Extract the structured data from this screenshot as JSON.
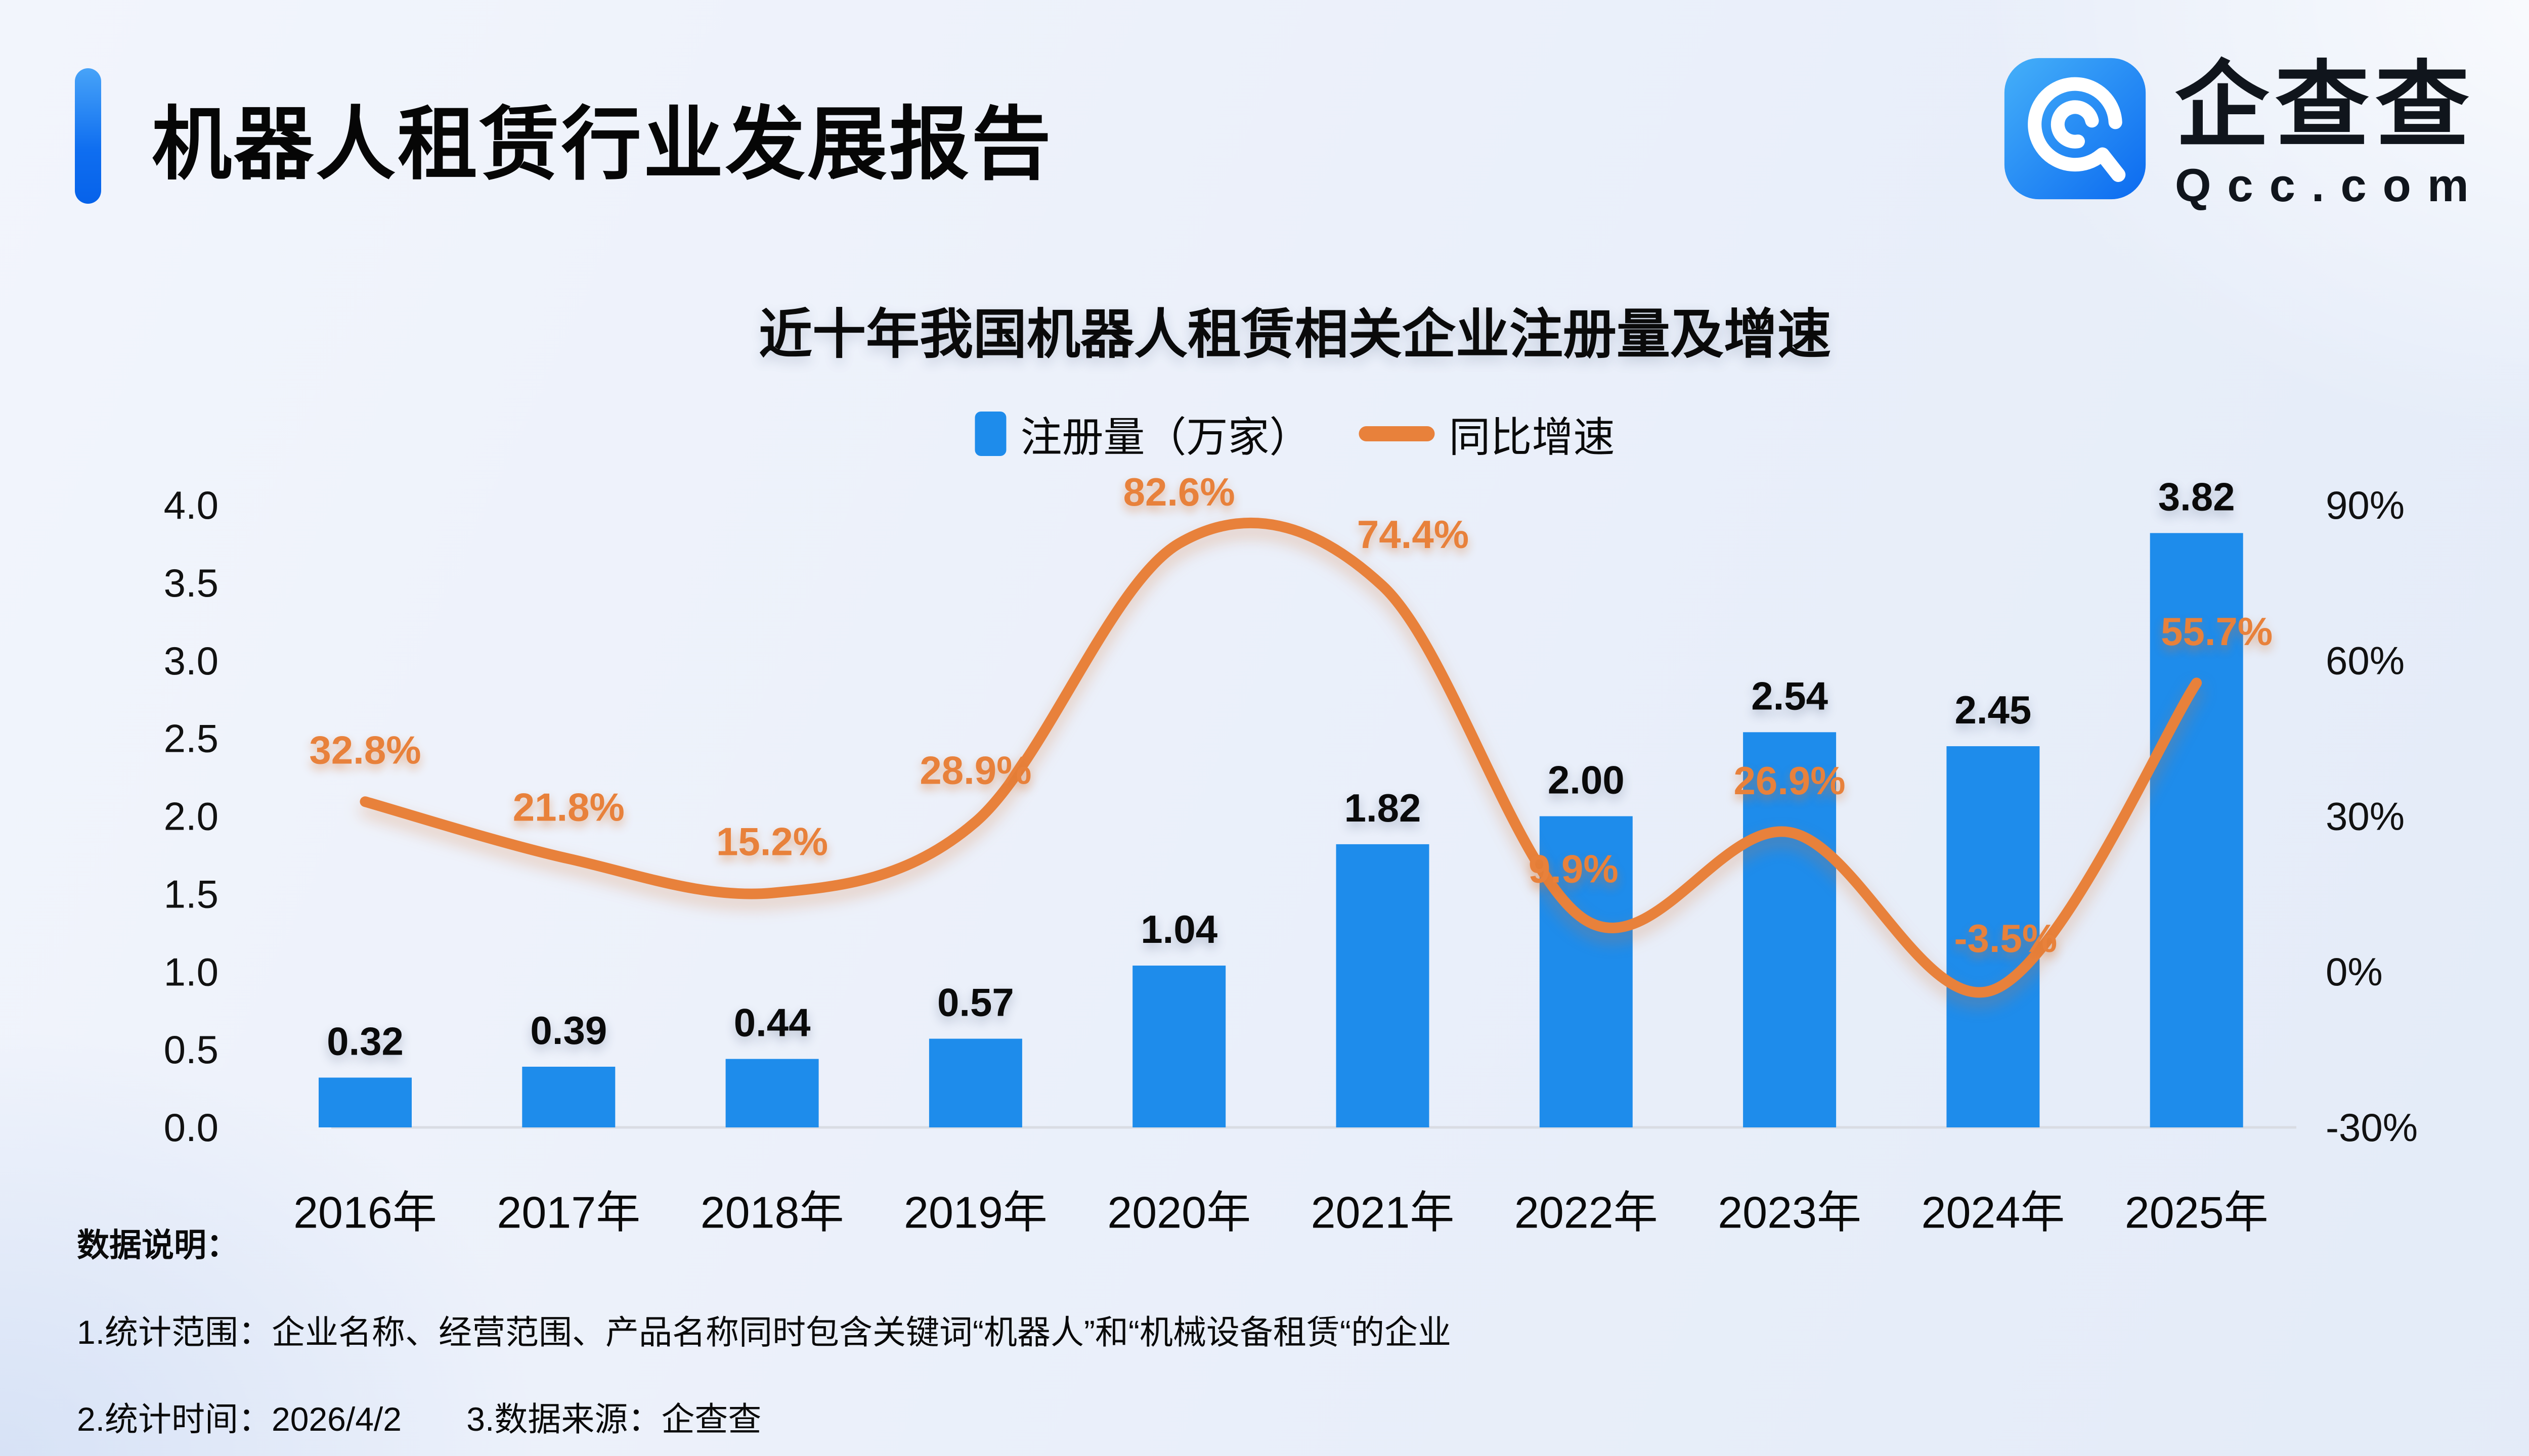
{
  "header": {
    "title": "机器人租赁行业发展报告"
  },
  "logo": {
    "name": "企查查",
    "domain": "Qcc.com"
  },
  "notes": {
    "heading": "数据说明：",
    "line1": "1.统计范围：企业名称、经营范围、产品名称同时包含关键词“机器人”和“机械设备租赁“的企业",
    "line2_time": "2.统计时间：2026/4/2",
    "line2_source": "3.数据来源：企查查"
  },
  "chart_data": {
    "type": "bar",
    "title": "近十年我国机器人租赁相关企业注册量及增速",
    "categories": [
      "2016年",
      "2017年",
      "2018年",
      "2019年",
      "2020年",
      "2021年",
      "2022年",
      "2023年",
      "2024年",
      "2025年"
    ],
    "series": [
      {
        "name": "注册量（万家）",
        "type": "bar",
        "color": "#1e8ceb",
        "values": [
          0.32,
          0.39,
          0.44,
          0.57,
          1.04,
          1.82,
          2.0,
          2.54,
          2.45,
          3.82
        ],
        "value_labels": [
          "0.32",
          "0.39",
          "0.44",
          "0.57",
          "1.04",
          "1.82",
          "2.00",
          "2.54",
          "2.45",
          "3.82"
        ]
      },
      {
        "name": "同比增速",
        "type": "line",
        "color": "#e8813b",
        "unit": "%",
        "values": [
          32.8,
          21.8,
          15.2,
          28.9,
          82.6,
          74.4,
          9.9,
          26.9,
          -3.5,
          55.7
        ],
        "value_labels": [
          "32.8%",
          "21.8%",
          "15.2%",
          "28.9%",
          "82.6%",
          "74.4%",
          "9.9%",
          "26.9%",
          "-3.5%",
          "55.7%"
        ]
      }
    ],
    "left_axis": {
      "title": "注册量（万家）",
      "min": 0,
      "max": 4,
      "labels": [
        "4.0",
        "3.5",
        "3.0",
        "2.5",
        "2.0",
        "1.5",
        "1.0",
        "0.5",
        "0.0"
      ]
    },
    "right_axis": {
      "title": "同比增速",
      "min": -30,
      "max": 90,
      "labels": [
        "90%",
        "60%",
        "30%",
        "0%",
        "-30%"
      ]
    },
    "grid": "off",
    "legend_position": "top-center"
  }
}
